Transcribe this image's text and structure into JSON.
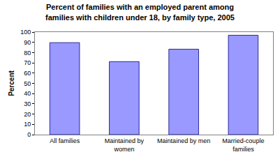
{
  "chart_data": {
    "type": "bar",
    "title": "Percent of families with an employed parent among families with children under 18, by family type, 2005",
    "y_label": "Percent",
    "categories": [
      "All families",
      "Maintained by women",
      "Maintained by men",
      "Married-couple families"
    ],
    "values": [
      89.7,
      71.2,
      83.3,
      96.9
    ],
    "color": "#9999ff",
    "ylim": [
      0,
      100
    ],
    "yticks": [
      0,
      10,
      20,
      30,
      40,
      50,
      60,
      70,
      80,
      90,
      100
    ],
    "grid": false
  }
}
